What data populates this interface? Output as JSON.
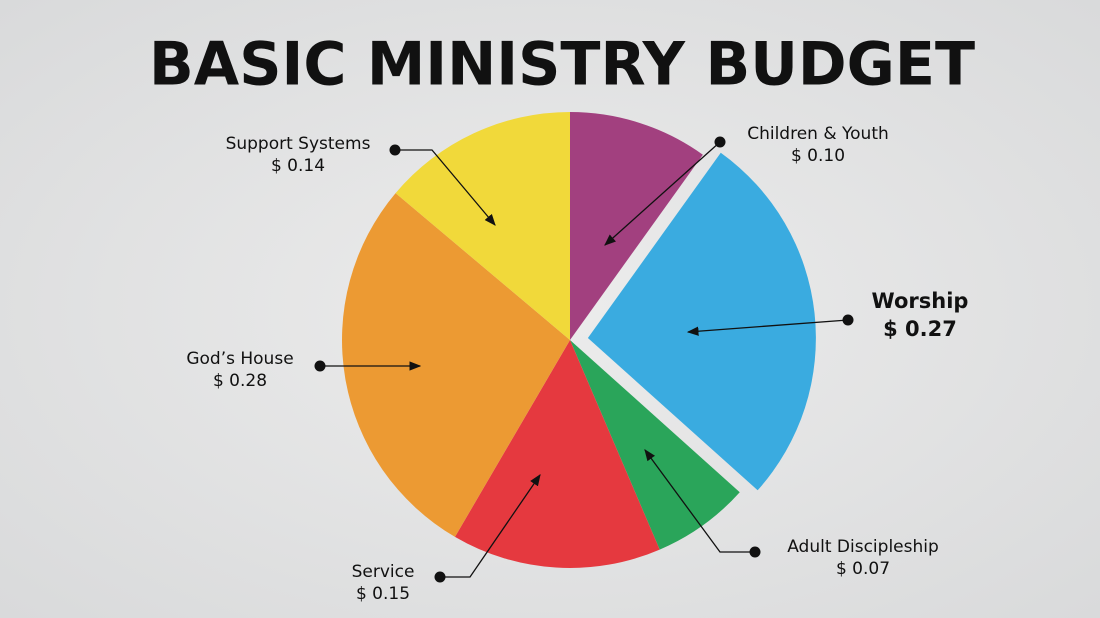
{
  "chart_data": {
    "type": "pie",
    "title": "BASIC MINISTRY BUDGET",
    "categories": [
      "Children & Youth",
      "Worship",
      "Adult Discipleship",
      "Service",
      "God’s House",
      "Support Systems"
    ],
    "values": [
      0.1,
      0.27,
      0.07,
      0.15,
      0.28,
      0.14
    ],
    "value_labels": [
      "$ 0.10",
      "$ 0.27",
      "$ 0.07",
      "$ 0.15",
      "$ 0.28",
      "$ 0.14"
    ],
    "colors": [
      "#a2407f",
      "#3aabe0",
      "#2aa55a",
      "#e5393f",
      "#ec9a33",
      "#f1d93a"
    ]
  }
}
